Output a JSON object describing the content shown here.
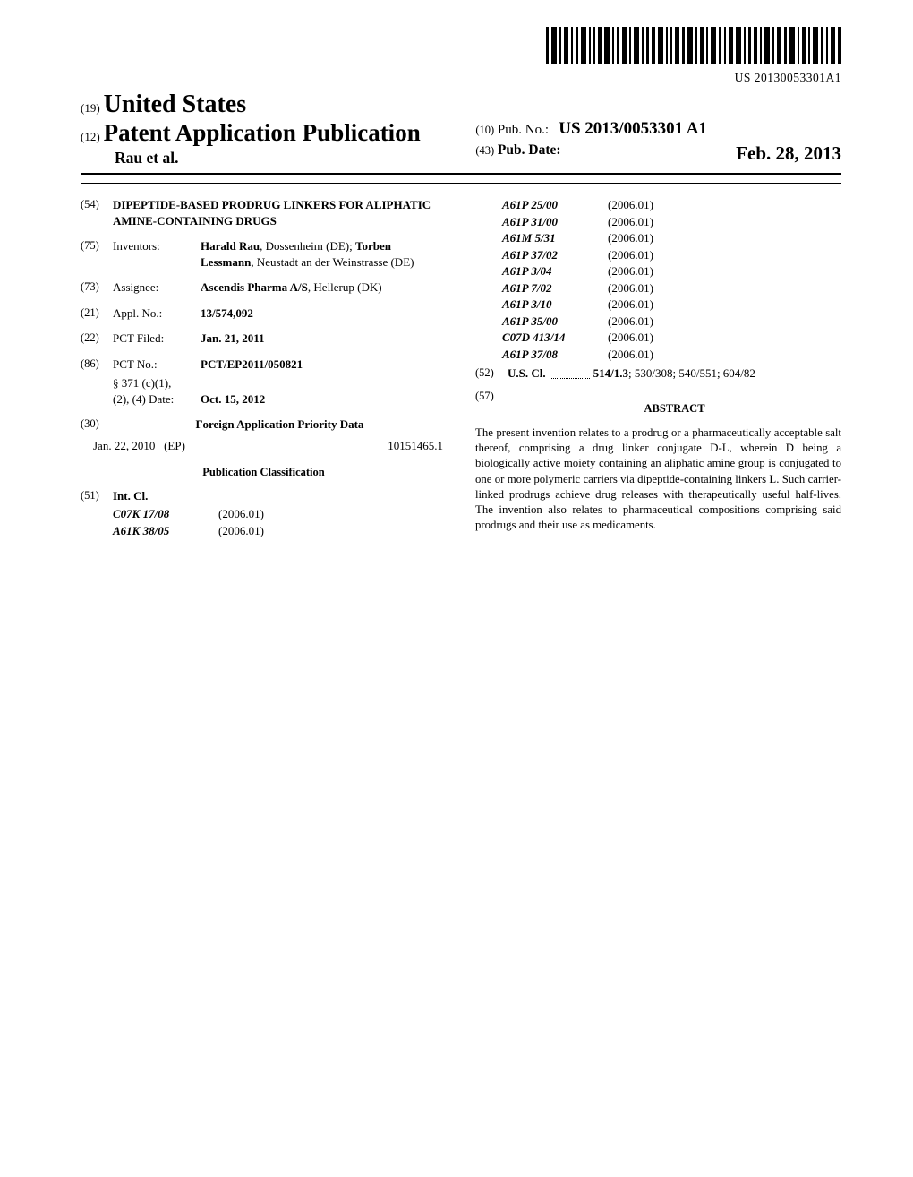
{
  "barcode_number": "US 20130053301A1",
  "header": {
    "code19": "(19)",
    "country": "United States",
    "code12": "(12)",
    "doc_type": "Patent Application Publication",
    "authors": "Rau et al.",
    "code10": "(10)",
    "pubno_label": "Pub. No.:",
    "pubno": "US 2013/0053301 A1",
    "code43": "(43)",
    "pubdate_label": "Pub. Date:",
    "pubdate": "Feb. 28, 2013"
  },
  "left_col": {
    "f54": {
      "code": "(54)",
      "value": "DIPEPTIDE-BASED PRODRUG LINKERS FOR ALIPHATIC AMINE-CONTAINING DRUGS"
    },
    "f75": {
      "code": "(75)",
      "label": "Inventors:",
      "value": "<b>Harald Rau</b>, Dossenheim (DE); <b>Torben Lessmann</b>, Neustadt an der Weinstrasse (DE)"
    },
    "f73": {
      "code": "(73)",
      "label": "Assignee:",
      "value": "<b>Ascendis Pharma A/S</b>, Hellerup (DK)"
    },
    "f21": {
      "code": "(21)",
      "label": "Appl. No.:",
      "value": "13/574,092"
    },
    "f22": {
      "code": "(22)",
      "label": "PCT Filed:",
      "value": "Jan. 21, 2011"
    },
    "f86": {
      "code": "(86)",
      "label": "PCT No.:",
      "value": "PCT/EP2011/050821",
      "sub1": "§ 371 (c)(1),",
      "sub2_label": "(2), (4) Date:",
      "sub2_value": "Oct. 15, 2012"
    },
    "f30": {
      "code": "(30)",
      "heading": "Foreign Application Priority Data",
      "date": "Jan. 22, 2010",
      "cc": "(EP)",
      "appno": "10151465.1"
    },
    "pubclass_heading": "Publication Classification",
    "f51": {
      "code": "(51)",
      "label": "Int. Cl."
    },
    "intl_left": [
      {
        "code": "C07K 17/08",
        "year": "(2006.01)"
      },
      {
        "code": "A61K 38/05",
        "year": "(2006.01)"
      }
    ]
  },
  "right_col": {
    "intl_right": [
      {
        "code": "A61P 25/00",
        "year": "(2006.01)"
      },
      {
        "code": "A61P 31/00",
        "year": "(2006.01)"
      },
      {
        "code": "A61M 5/31",
        "year": "(2006.01)"
      },
      {
        "code": "A61P 37/02",
        "year": "(2006.01)"
      },
      {
        "code": "A61P 3/04",
        "year": "(2006.01)"
      },
      {
        "code": "A61P 7/02",
        "year": "(2006.01)"
      },
      {
        "code": "A61P 3/10",
        "year": "(2006.01)"
      },
      {
        "code": "A61P 35/00",
        "year": "(2006.01)"
      },
      {
        "code": "C07D 413/14",
        "year": "(2006.01)"
      },
      {
        "code": "A61P 37/08",
        "year": "(2006.01)"
      }
    ],
    "f52": {
      "code": "(52)",
      "label": "U.S. Cl.",
      "value_bold": "514/1.3",
      "value_rest": "; 530/308; 540/551; 604/82"
    },
    "f57": {
      "code": "(57)",
      "heading": "ABSTRACT"
    },
    "abstract": "The present invention relates to a prodrug or a pharmaceutically acceptable salt thereof, comprising a drug linker conjugate D-L, wherein D being a biologically active moiety containing an aliphatic amine group is conjugated to one or more polymeric carriers via dipeptide-containing linkers L. Such carrier-linked prodrugs achieve drug releases with therapeutically useful half-lives. The invention also relates to pharmaceutical compositions comprising said prodrugs and their use as medicaments."
  }
}
